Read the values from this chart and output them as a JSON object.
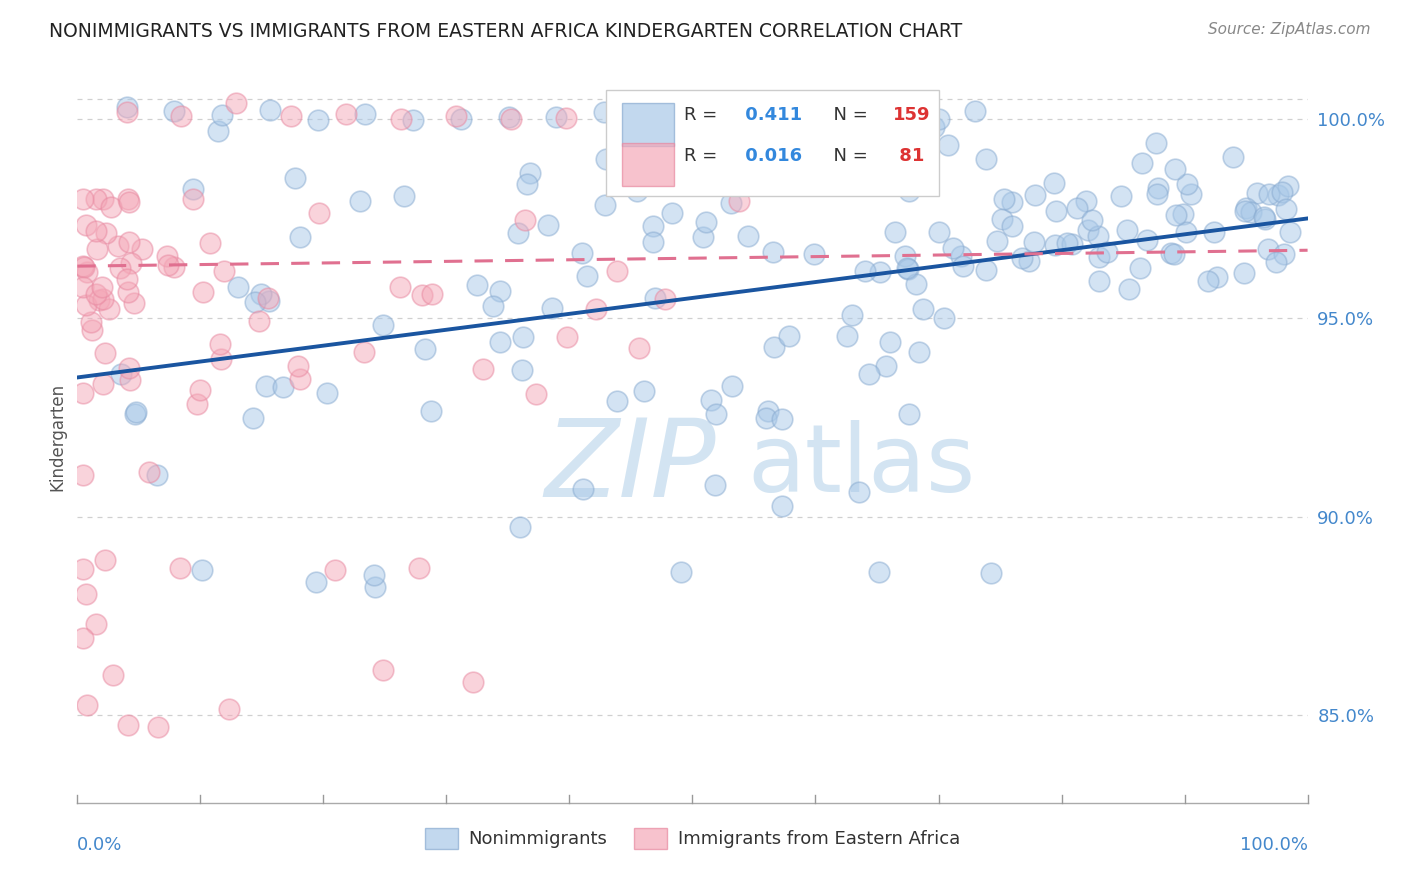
{
  "title": "NONIMMIGRANTS VS IMMIGRANTS FROM EASTERN AFRICA KINDERGARTEN CORRELATION CHART",
  "source": "Source: ZipAtlas.com",
  "ylabel": "Kindergarten",
  "xmin": 0.0,
  "xmax": 1.0,
  "ymin": 0.828,
  "ymax": 1.012,
  "blue_R": 0.411,
  "blue_N": 159,
  "pink_R": 0.016,
  "pink_N": 81,
  "blue_color": "#a8c8e8",
  "pink_color": "#f4a8b8",
  "blue_edge_color": "#88aad0",
  "pink_edge_color": "#e888a0",
  "blue_line_color": "#1a55a0",
  "pink_line_color": "#e07090",
  "background_color": "#ffffff",
  "grid_color": "#d0d0d0",
  "title_color": "#222222",
  "axis_label_color": "#4488cc",
  "legend_R_color": "#3388dd",
  "legend_N_color": "#dd3333",
  "watermark_color": "#cce0f0",
  "blue_trend_x": [
    0.0,
    1.0
  ],
  "blue_trend_y": [
    0.935,
    0.975
  ],
  "pink_trend_x": [
    0.0,
    1.0
  ],
  "pink_trend_y": [
    0.963,
    0.967
  ],
  "yticks": [
    0.85,
    0.9,
    0.95,
    1.0
  ],
  "ytick_labels": [
    "85.0%",
    "90.0%",
    "95.0%",
    "100.0%"
  ]
}
